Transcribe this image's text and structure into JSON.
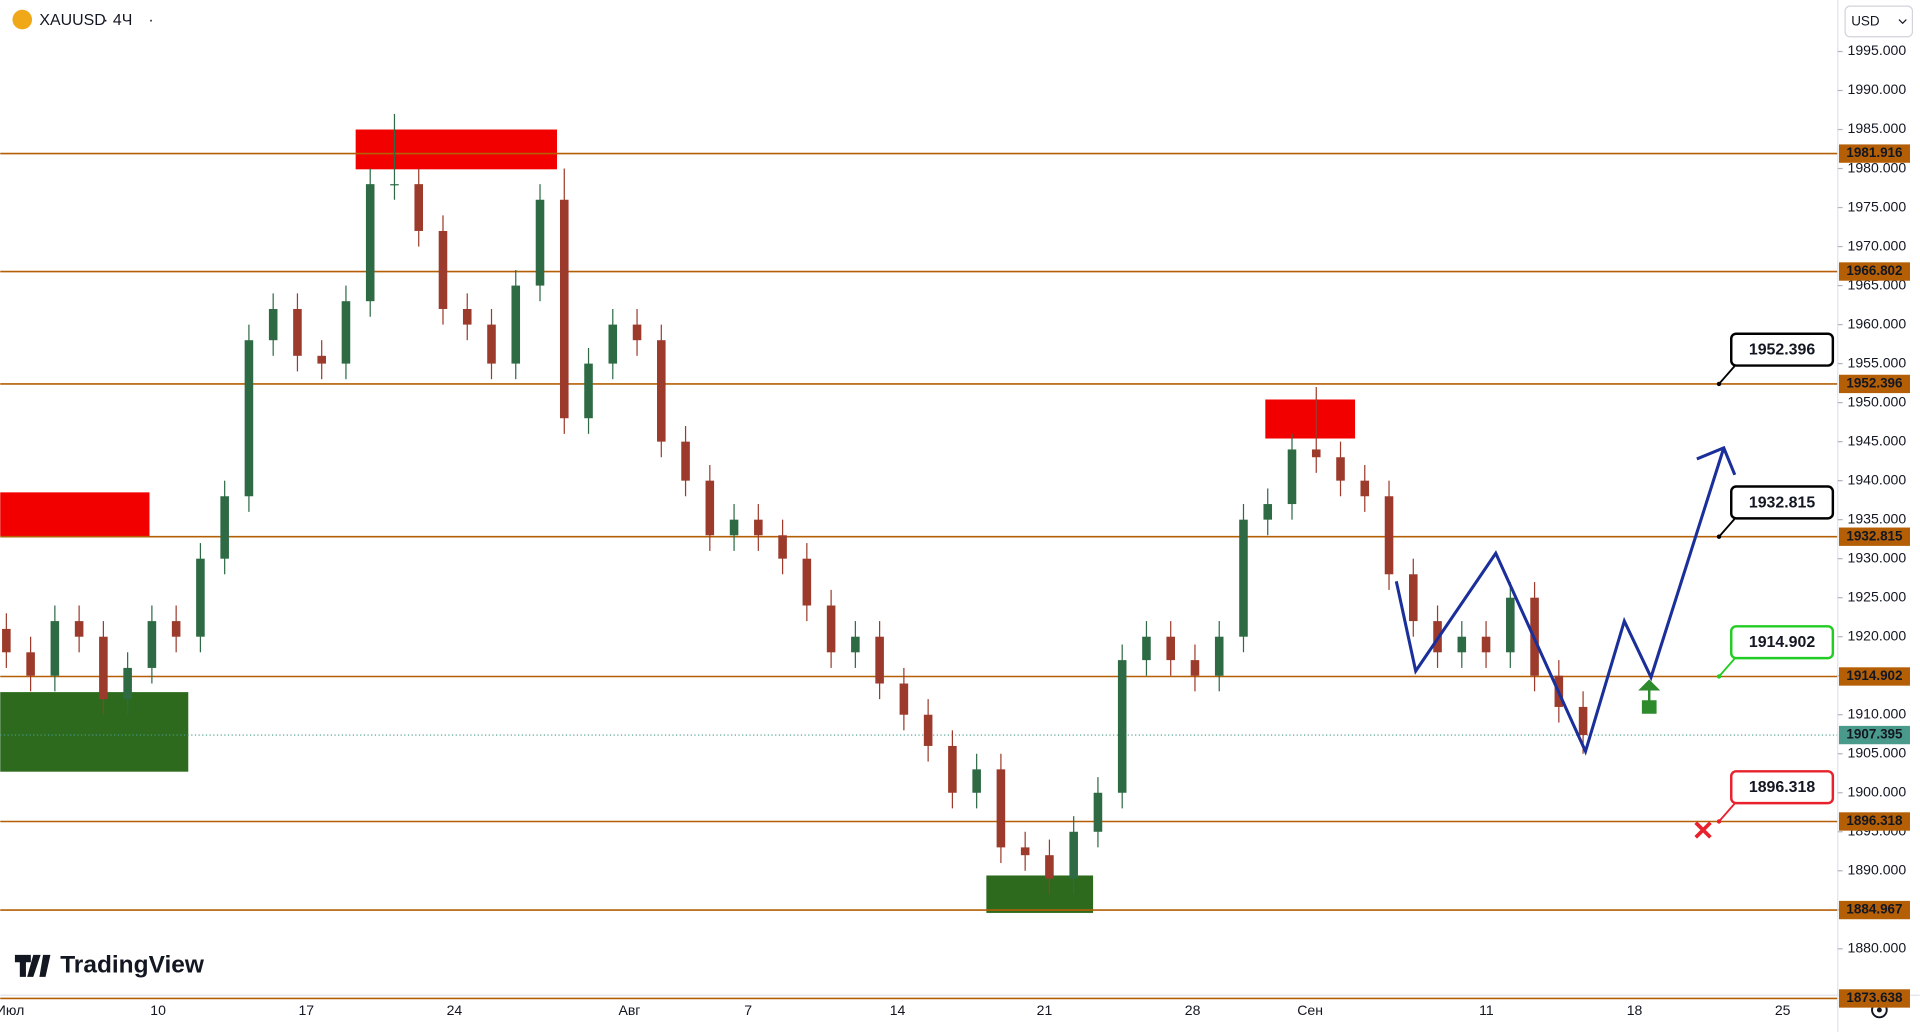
{
  "header": {
    "symbol": "XAUUSD",
    "interval": "4Ч",
    "currency": "USD"
  },
  "brand": "TradingView",
  "chart_data": {
    "type": "candlestick",
    "ylim": [
      1873.638,
      2001.6
    ],
    "yticks": [
      {
        "value": 1880,
        "label": "1880.000"
      },
      {
        "value": 1885,
        "label": "1885.000"
      },
      {
        "value": 1890,
        "label": "1890.000"
      },
      {
        "value": 1895,
        "label": "1895.000"
      },
      {
        "value": 1900,
        "label": "1900.000"
      },
      {
        "value": 1905,
        "label": "1905.000"
      },
      {
        "value": 1910,
        "label": "1910.000"
      },
      {
        "value": 1915,
        "label": "1915.000"
      },
      {
        "value": 1920,
        "label": "1920.000"
      },
      {
        "value": 1925,
        "label": "1925.000"
      },
      {
        "value": 1930,
        "label": "1930.000"
      },
      {
        "value": 1935,
        "label": "1935.000"
      },
      {
        "value": 1940,
        "label": "1940.000"
      },
      {
        "value": 1945,
        "label": "1945.000"
      },
      {
        "value": 1950,
        "label": "1950.000"
      },
      {
        "value": 1955,
        "label": "1955.000"
      },
      {
        "value": 1960,
        "label": "1960.000"
      },
      {
        "value": 1965,
        "label": "1965.000"
      },
      {
        "value": 1970,
        "label": "1970.000"
      },
      {
        "value": 1975,
        "label": "1975.000"
      },
      {
        "value": 1980,
        "label": "1980.000"
      },
      {
        "value": 1985,
        "label": "1985.000"
      },
      {
        "value": 1990,
        "label": "1990.000"
      },
      {
        "value": 1995,
        "label": "1995.000"
      }
    ],
    "x_labels": [
      "Июл",
      "10",
      "17",
      "24",
      "Авг",
      "7",
      "14",
      "21",
      "28",
      "Сен",
      "11",
      "18",
      "25"
    ],
    "up_color": "#2e6b45",
    "down_color": "#9c3b2c",
    "open": [
      1921,
      1918,
      1915,
      1922,
      1920,
      1912,
      1916,
      1922,
      1920,
      1930,
      1938,
      1958,
      1962,
      1956,
      1955,
      1963,
      1978,
      1978,
      1972,
      1962,
      1960,
      1955,
      1965,
      1976,
      1948,
      1955,
      1960,
      1958,
      1945,
      1940,
      1933,
      1935,
      1933,
      1930,
      1924,
      1918,
      1920,
      1914,
      1910,
      1906,
      1900,
      1903,
      1893,
      1892,
      1889,
      1895,
      1900,
      1917,
      1920,
      1917,
      1915,
      1920,
      1935,
      1937,
      1944,
      1943,
      1940,
      1938,
      1928,
      1922,
      1918,
      1920,
      1918,
      1925,
      1915,
      1911
    ],
    "high": [
      1923,
      1920,
      1924,
      1924,
      1922,
      1918,
      1924,
      1924,
      1932,
      1940,
      1960,
      1964,
      1964,
      1958,
      1965,
      1980,
      1987,
      1980,
      1974,
      1964,
      1962,
      1967,
      1978,
      1980,
      1957,
      1962,
      1962,
      1960,
      1947,
      1942,
      1937,
      1937,
      1935,
      1932,
      1926,
      1922,
      1922,
      1916,
      1912,
      1908,
      1905,
      1905,
      1895,
      1894,
      1897,
      1902,
      1919,
      1922,
      1922,
      1919,
      1922,
      1937,
      1939,
      1946,
      1952,
      1945,
      1942,
      1940,
      1930,
      1924,
      1922,
      1922,
      1927,
      1927,
      1917,
      1913
    ],
    "low": [
      1916,
      1913,
      1913,
      1918,
      1910,
      1910,
      1914,
      1918,
      1918,
      1928,
      1936,
      1956,
      1954,
      1953,
      1953,
      1961,
      1976,
      1970,
      1960,
      1958,
      1953,
      1953,
      1963,
      1946,
      1946,
      1953,
      1956,
      1943,
      1938,
      1931,
      1931,
      1931,
      1928,
      1922,
      1916,
      1916,
      1912,
      1908,
      1904,
      1898,
      1898,
      1891,
      1890,
      1887,
      1887,
      1893,
      1898,
      1915,
      1915,
      1913,
      1913,
      1918,
      1933,
      1935,
      1941,
      1938,
      1936,
      1926,
      1920,
      1916,
      1916,
      1916,
      1916,
      1913,
      1909,
      1905
    ],
    "close": [
      1918,
      1915,
      1922,
      1920,
      1912,
      1916,
      1922,
      1920,
      1930,
      1938,
      1958,
      1962,
      1956,
      1955,
      1963,
      1978,
      1978,
      1972,
      1962,
      1960,
      1955,
      1965,
      1976,
      1948,
      1955,
      1960,
      1958,
      1945,
      1940,
      1933,
      1935,
      1933,
      1930,
      1924,
      1918,
      1920,
      1914,
      1910,
      1906,
      1900,
      1903,
      1893,
      1892,
      1889,
      1895,
      1900,
      1917,
      1920,
      1917,
      1915,
      1920,
      1935,
      1937,
      1944,
      1943,
      1940,
      1938,
      1928,
      1922,
      1918,
      1920,
      1918,
      1925,
      1915,
      1911,
      1907.395
    ],
    "levels": [
      1981.916,
      1966.802,
      1952.396,
      1932.815,
      1914.902,
      1896.318,
      1884.967,
      1873.638
    ],
    "level_color": "#b45f06",
    "last_price": 1907.395,
    "last_price_color": "#4a9a8c",
    "zones": [
      {
        "x0": 14.4,
        "x1": 22.7,
        "top": 1985,
        "bottom": 1979.9,
        "color": "#f20000"
      },
      {
        "x0": -0.3,
        "x1": 5.9,
        "top": 1938.5,
        "bottom": 1932.9,
        "color": "#f20000"
      },
      {
        "x0": 51.9,
        "x1": 55.6,
        "top": 1950.4,
        "bottom": 1945.4,
        "color": "#f20000"
      },
      {
        "x0": -0.3,
        "x1": 7.5,
        "top": 1912.9,
        "bottom": 1902.7,
        "color": "#2d6a1e"
      },
      {
        "x0": 40.4,
        "x1": 44.8,
        "top": 1889.4,
        "bottom": 1884.6,
        "color": "#2d6a1e"
      }
    ],
    "projection": {
      "x": [
        57.3,
        58.1,
        61.4,
        65.1,
        66.7,
        67.8,
        70.8
      ],
      "y": [
        1927.1,
        1915.6,
        1930.7,
        1905.3,
        1922.0,
        1914.8,
        1944.2
      ],
      "color": "#1a2f9a"
    },
    "callouts": [
      {
        "value": 1952.396,
        "color": "#000000"
      },
      {
        "value": 1932.815,
        "color": "#000000"
      },
      {
        "value": 1914.902,
        "color": "#22cc22"
      },
      {
        "value": 1896.318,
        "color": "#e8212d"
      }
    ]
  }
}
